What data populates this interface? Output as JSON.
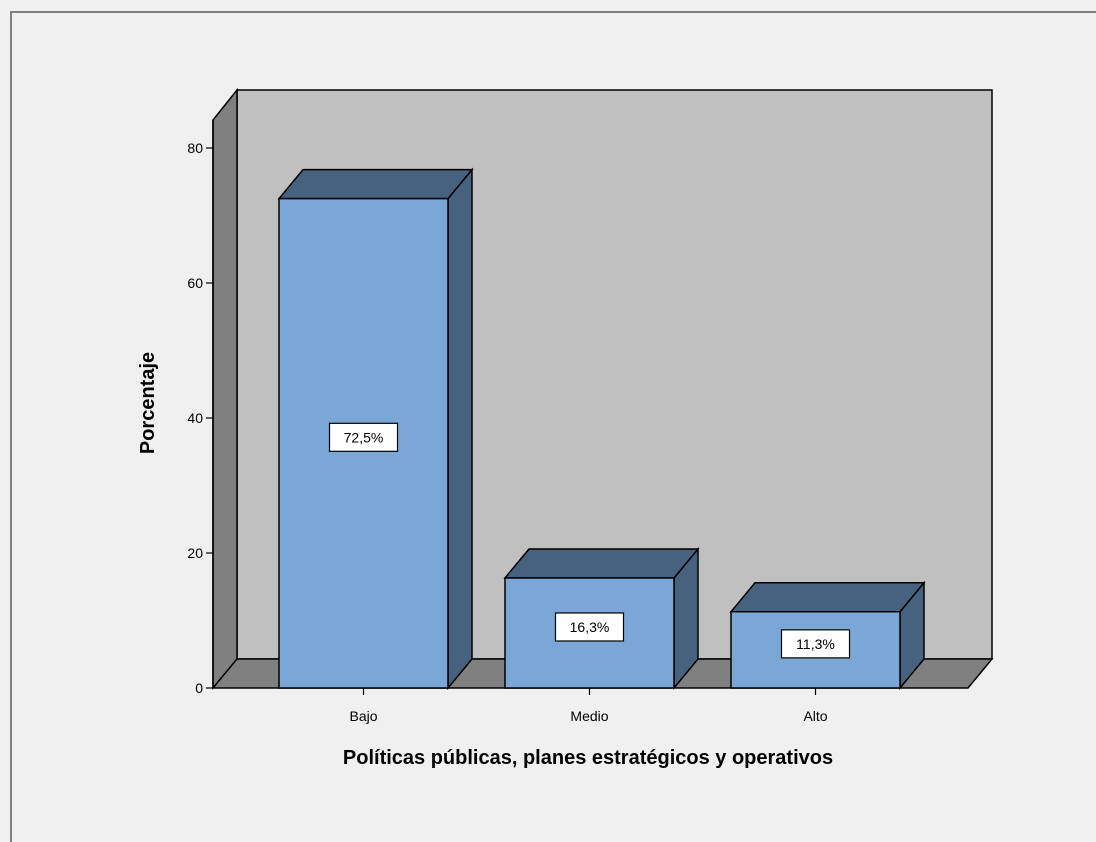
{
  "chart_data": {
    "type": "bar",
    "title": "",
    "xlabel": "Políticas públicas, planes estratégicos y operativos",
    "ylabel": "Porcentaje",
    "categories": [
      "Bajo",
      "Medio",
      "Alto"
    ],
    "values": [
      72.5,
      16.3,
      11.3
    ],
    "data_labels": [
      "72,5%",
      "16,3%",
      "11,3%"
    ],
    "ylim": [
      0,
      80
    ],
    "yticks": [
      0,
      20,
      40,
      60,
      80
    ],
    "ytick_labels": [
      "0",
      "20",
      "40",
      "60",
      "80"
    ],
    "grid": false,
    "legend": "none",
    "three_d": true,
    "colors": {
      "bar_front": "#7ba7d7",
      "bar_top": "#47627f",
      "bar_side": "#47627f",
      "plot_back_wall": "#c0c0c0",
      "plot_side_wall": "#808080",
      "plot_floor": "#808080",
      "background": "#f0f0f0"
    }
  }
}
